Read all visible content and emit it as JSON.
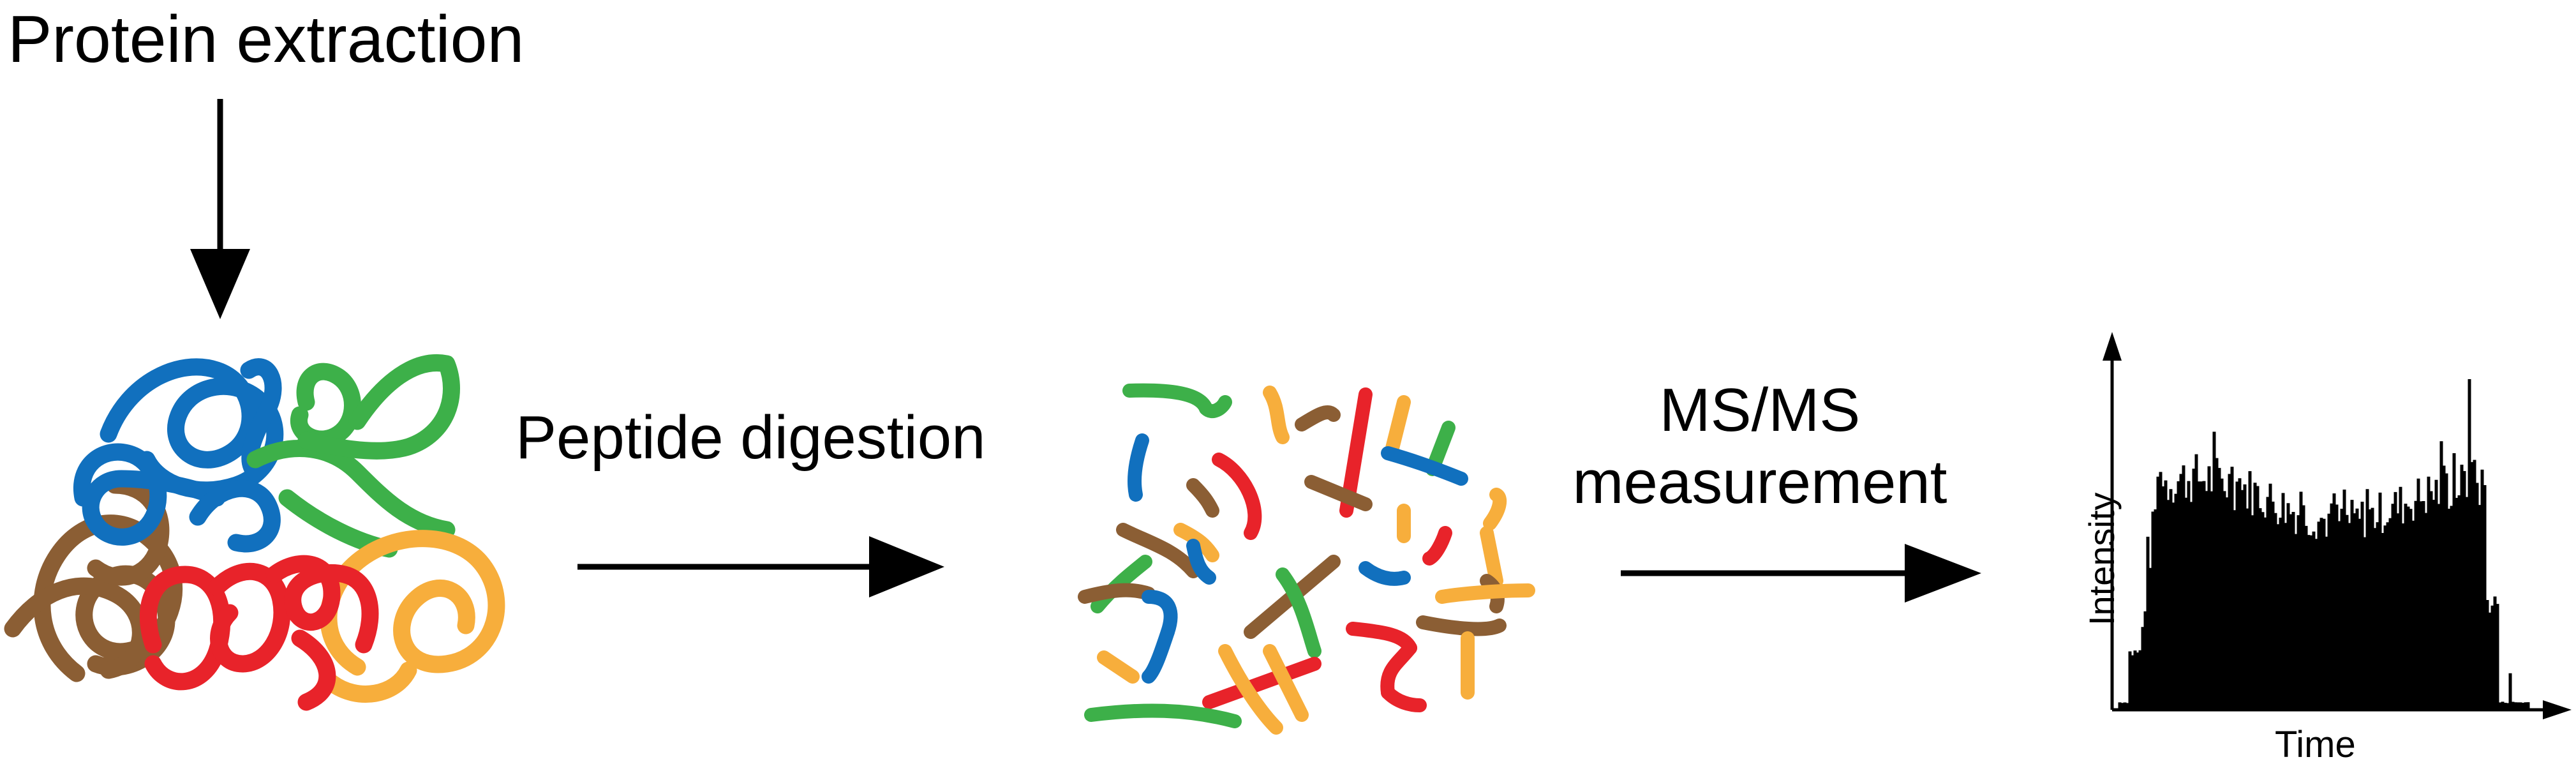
{
  "title": "Protein extraction",
  "steps": [
    {
      "label": "Peptide digestion"
    },
    {
      "label": "MS/MS measurement"
    }
  ],
  "chart": {
    "xlabel": "Time",
    "ylabel": "Intensity"
  },
  "colors": {
    "blue": "#1170be",
    "green": "#3db049",
    "brown": "#8b5e34",
    "red": "#e8232a",
    "orange": "#f7ae3c",
    "black": "#000000"
  }
}
